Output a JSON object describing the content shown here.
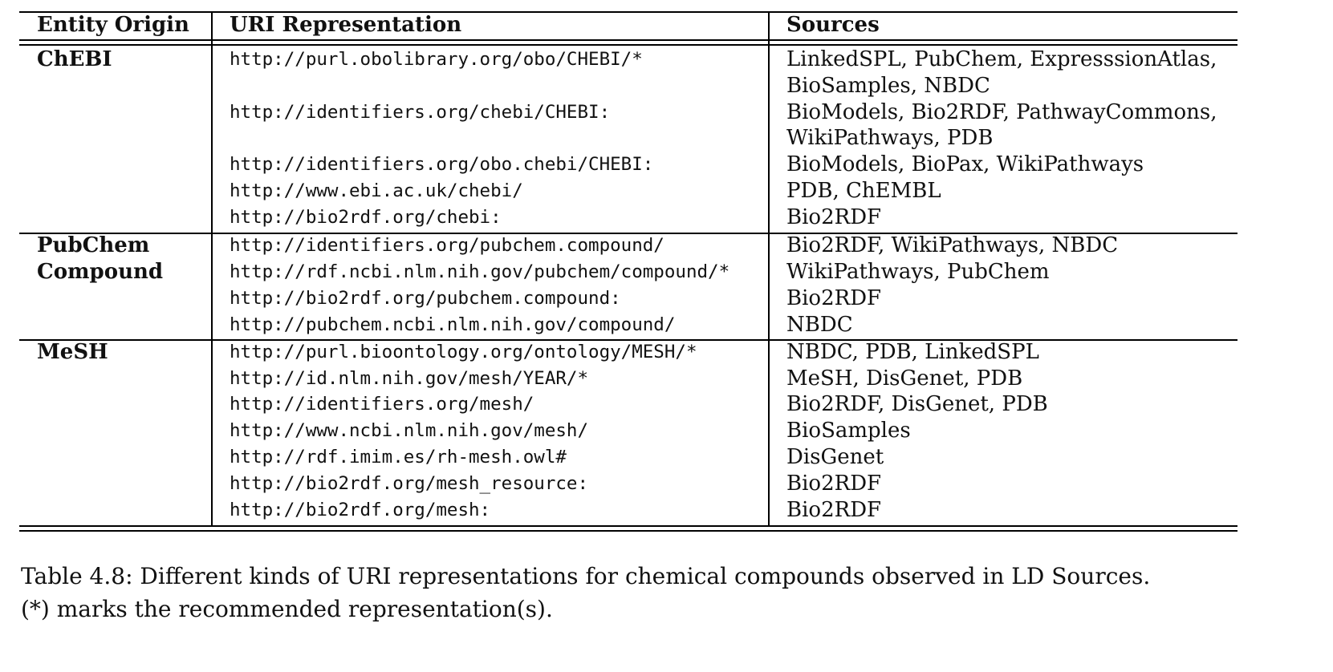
{
  "table": {
    "headers": {
      "entity_origin": "Entity Origin",
      "uri_representation": "URI Representation",
      "sources": "Sources"
    },
    "groups": [
      {
        "origin_lines": [
          "ChEBI"
        ],
        "rows": [
          {
            "uri": "http://purl.obolibrary.org/obo/CHEBI/*",
            "sources": [
              "LinkedSPL, PubChem, ExpresssionAtlas,",
              "BioSamples, NBDC"
            ]
          },
          {
            "uri": "http://identifiers.org/chebi/CHEBI:",
            "sources": [
              "BioModels, Bio2RDF, PathwayCommons,",
              "WikiPathways, PDB"
            ]
          },
          {
            "uri": "http://identifiers.org/obo.chebi/CHEBI:",
            "sources": [
              "BioModels, BioPax, WikiPathways"
            ]
          },
          {
            "uri": "http://www.ebi.ac.uk/chebi/",
            "sources": [
              "PDB, ChEMBL"
            ]
          },
          {
            "uri": "http://bio2rdf.org/chebi:",
            "sources": [
              "Bio2RDF"
            ]
          }
        ]
      },
      {
        "origin_lines": [
          "PubChem",
          "Compound"
        ],
        "rows": [
          {
            "uri": "http://identifiers.org/pubchem.compound/",
            "sources": [
              "Bio2RDF, WikiPathways, NBDC"
            ]
          },
          {
            "uri": "http://rdf.ncbi.nlm.nih.gov/pubchem/compound/*",
            "sources": [
              "WikiPathways, PubChem"
            ]
          },
          {
            "uri": "http://bio2rdf.org/pubchem.compound:",
            "sources": [
              "Bio2RDF"
            ]
          },
          {
            "uri": "http://pubchem.ncbi.nlm.nih.gov/compound/",
            "sources": [
              "NBDC"
            ]
          }
        ]
      },
      {
        "origin_lines": [
          "MeSH"
        ],
        "rows": [
          {
            "uri": "http://purl.bioontology.org/ontology/MESH/*",
            "sources": [
              "NBDC, PDB, LinkedSPL"
            ]
          },
          {
            "uri": "http://id.nlm.nih.gov/mesh/YEAR/*",
            "sources": [
              "MeSH, DisGenet, PDB"
            ]
          },
          {
            "uri": "http://identifiers.org/mesh/",
            "sources": [
              "Bio2RDF, DisGenet, PDB"
            ]
          },
          {
            "uri": "http://www.ncbi.nlm.nih.gov/mesh/",
            "sources": [
              "BioSamples"
            ]
          },
          {
            "uri": "http://rdf.imim.es/rh-mesh.owl#",
            "sources": [
              "DisGenet"
            ]
          },
          {
            "uri": "http://bio2rdf.org/mesh_resource:",
            "sources": [
              "Bio2RDF"
            ]
          },
          {
            "uri": "http://bio2rdf.org/mesh:",
            "sources": [
              "Bio2RDF"
            ]
          }
        ]
      }
    ]
  },
  "caption": {
    "line1": "Table 4.8: Different kinds of URI representations for chemical compounds observed in LD Sources.",
    "line2": "(*) marks the recommended representation(s)."
  }
}
